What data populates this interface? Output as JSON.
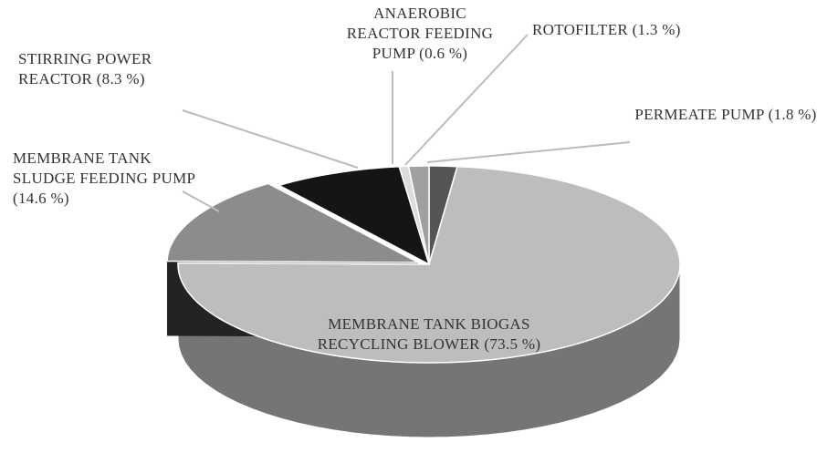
{
  "chart_data": {
    "type": "pie",
    "categories": [
      "PERMEATE PUMP",
      "MEMBRANE TANK BIOGAS RECYCLING BLOWER",
      "MEMBRANE TANK SLUDGE FEEDING PUMP",
      "STIRRING POWER REACTOR",
      "ANAEROBIC REACTOR FEEDING PUMP",
      "ROTOFILTER"
    ],
    "values": [
      1.8,
      73.5,
      14.6,
      8.3,
      0.6,
      1.3
    ],
    "value_labels": [
      "(1.8 %)",
      "(73.5 %)",
      "(14.6 %)",
      "(8.3 %)",
      "(0.6 %)",
      "(1.3 %)"
    ],
    "colors": [
      "#555555",
      "#bdbdbd",
      "#8c8c8c",
      "#151515",
      "#dcdcdc",
      "#a0a0a0"
    ]
  }
}
